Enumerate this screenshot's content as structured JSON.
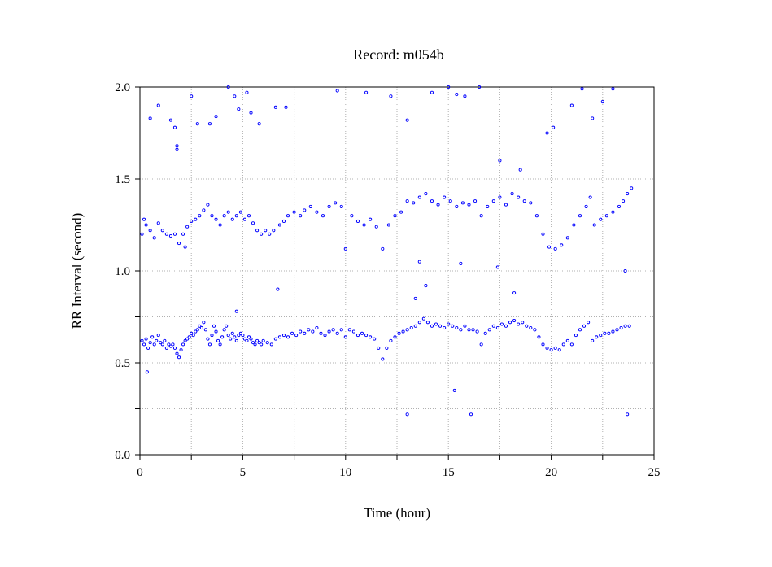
{
  "chart_data": {
    "type": "scatter",
    "title": "Record:  m054b",
    "xlabel": "Time (hour)",
    "ylabel": "RR Interval (second)",
    "xlim": [
      0,
      25
    ],
    "ylim": [
      0.0,
      2.0
    ],
    "x_ticks": [
      0,
      5,
      10,
      15,
      20,
      25
    ],
    "x_tick_labels": [
      "0",
      "5",
      "10",
      "15",
      "20",
      "25"
    ],
    "y_ticks": [
      0.0,
      0.5,
      1.0,
      1.5,
      2.0
    ],
    "y_tick_labels": [
      "0.0",
      "0.5",
      "1.0",
      "1.5",
      "2.0"
    ],
    "grid": true,
    "marker": "open-circle",
    "color": "#0000ff",
    "series": [
      {
        "values": [
          [
            0.1,
            0.62
          ],
          [
            0.2,
            0.6
          ],
          [
            0.3,
            0.63
          ],
          [
            0.4,
            0.58
          ],
          [
            0.5,
            0.61
          ],
          [
            0.6,
            0.64
          ],
          [
            0.7,
            0.6
          ],
          [
            0.8,
            0.62
          ],
          [
            0.9,
            0.65
          ],
          [
            1.0,
            0.61
          ],
          [
            1.1,
            0.6
          ],
          [
            1.2,
            0.62
          ],
          [
            1.3,
            0.58
          ],
          [
            1.4,
            0.6
          ],
          [
            1.5,
            0.59
          ],
          [
            1.6,
            0.6
          ],
          [
            1.7,
            0.58
          ],
          [
            1.8,
            0.55
          ],
          [
            1.9,
            0.53
          ],
          [
            2.0,
            0.57
          ],
          [
            2.1,
            0.6
          ],
          [
            2.2,
            0.62
          ],
          [
            2.3,
            0.63
          ],
          [
            2.4,
            0.64
          ],
          [
            2.5,
            0.66
          ],
          [
            2.6,
            0.65
          ],
          [
            2.7,
            0.67
          ],
          [
            2.8,
            0.68
          ],
          [
            2.9,
            0.7
          ],
          [
            3.0,
            0.69
          ],
          [
            3.1,
            0.72
          ],
          [
            3.2,
            0.68
          ],
          [
            3.3,
            0.63
          ],
          [
            3.4,
            0.6
          ],
          [
            3.5,
            0.65
          ],
          [
            3.6,
            0.7
          ],
          [
            3.7,
            0.67
          ],
          [
            3.8,
            0.62
          ],
          [
            3.9,
            0.6
          ],
          [
            4.0,
            0.64
          ],
          [
            4.1,
            0.68
          ],
          [
            4.2,
            0.7
          ],
          [
            4.3,
            0.65
          ],
          [
            4.4,
            0.63
          ],
          [
            4.5,
            0.66
          ],
          [
            4.6,
            0.64
          ],
          [
            4.7,
            0.62
          ],
          [
            4.8,
            0.65
          ],
          [
            4.9,
            0.66
          ],
          [
            5.0,
            0.65
          ],
          [
            5.1,
            0.63
          ],
          [
            5.2,
            0.62
          ],
          [
            5.3,
            0.64
          ],
          [
            5.4,
            0.63
          ],
          [
            5.5,
            0.61
          ],
          [
            5.6,
            0.6
          ],
          [
            5.7,
            0.62
          ],
          [
            5.8,
            0.61
          ],
          [
            5.9,
            0.6
          ],
          [
            6.0,
            0.62
          ],
          [
            6.2,
            0.61
          ],
          [
            6.4,
            0.6
          ],
          [
            6.6,
            0.63
          ],
          [
            6.8,
            0.64
          ],
          [
            7.0,
            0.65
          ],
          [
            7.2,
            0.64
          ],
          [
            7.4,
            0.66
          ],
          [
            7.6,
            0.65
          ],
          [
            7.8,
            0.67
          ],
          [
            8.0,
            0.66
          ],
          [
            8.2,
            0.68
          ],
          [
            8.4,
            0.67
          ],
          [
            8.6,
            0.69
          ],
          [
            8.8,
            0.66
          ],
          [
            9.0,
            0.65
          ],
          [
            9.2,
            0.67
          ],
          [
            9.4,
            0.68
          ],
          [
            9.6,
            0.66
          ],
          [
            9.8,
            0.68
          ],
          [
            10.0,
            0.64
          ],
          [
            10.2,
            0.68
          ],
          [
            10.4,
            0.67
          ],
          [
            10.6,
            0.65
          ],
          [
            10.8,
            0.66
          ],
          [
            11.0,
            0.65
          ],
          [
            11.2,
            0.64
          ],
          [
            11.4,
            0.63
          ],
          [
            11.6,
            0.58
          ],
          [
            11.8,
            0.52
          ],
          [
            12.0,
            0.58
          ],
          [
            12.2,
            0.62
          ],
          [
            12.4,
            0.64
          ],
          [
            12.6,
            0.66
          ],
          [
            12.8,
            0.67
          ],
          [
            13.0,
            0.68
          ],
          [
            13.2,
            0.69
          ],
          [
            13.4,
            0.7
          ],
          [
            13.6,
            0.72
          ],
          [
            13.8,
            0.74
          ],
          [
            14.0,
            0.72
          ],
          [
            14.2,
            0.7
          ],
          [
            14.4,
            0.71
          ],
          [
            14.6,
            0.7
          ],
          [
            14.8,
            0.69
          ],
          [
            15.0,
            0.71
          ],
          [
            15.2,
            0.7
          ],
          [
            15.4,
            0.69
          ],
          [
            15.6,
            0.68
          ],
          [
            15.8,
            0.7
          ],
          [
            16.0,
            0.68
          ],
          [
            16.2,
            0.68
          ],
          [
            16.4,
            0.67
          ],
          [
            16.6,
            0.6
          ],
          [
            16.8,
            0.66
          ],
          [
            17.0,
            0.68
          ],
          [
            17.2,
            0.7
          ],
          [
            17.4,
            0.69
          ],
          [
            17.6,
            0.71
          ],
          [
            17.8,
            0.7
          ],
          [
            18.0,
            0.72
          ],
          [
            18.2,
            0.73
          ],
          [
            18.4,
            0.71
          ],
          [
            18.6,
            0.72
          ],
          [
            18.8,
            0.7
          ],
          [
            19.0,
            0.69
          ],
          [
            19.2,
            0.68
          ],
          [
            19.4,
            0.64
          ],
          [
            19.6,
            0.6
          ],
          [
            19.8,
            0.58
          ],
          [
            20.0,
            0.57
          ],
          [
            20.2,
            0.58
          ],
          [
            20.4,
            0.57
          ],
          [
            20.6,
            0.6
          ],
          [
            20.8,
            0.62
          ],
          [
            21.0,
            0.6
          ],
          [
            21.2,
            0.65
          ],
          [
            21.4,
            0.68
          ],
          [
            21.6,
            0.7
          ],
          [
            21.8,
            0.72
          ],
          [
            22.0,
            0.62
          ],
          [
            22.2,
            0.64
          ],
          [
            22.4,
            0.65
          ],
          [
            22.6,
            0.66
          ],
          [
            22.8,
            0.66
          ],
          [
            23.0,
            0.67
          ],
          [
            23.2,
            0.68
          ],
          [
            23.4,
            0.69
          ],
          [
            23.6,
            0.7
          ],
          [
            23.8,
            0.7
          ],
          [
            0.1,
            1.2
          ],
          [
            0.3,
            1.25
          ],
          [
            0.5,
            1.22
          ],
          [
            0.7,
            1.18
          ],
          [
            0.9,
            1.26
          ],
          [
            1.1,
            1.22
          ],
          [
            1.3,
            1.2
          ],
          [
            1.5,
            1.19
          ],
          [
            1.7,
            1.2
          ],
          [
            1.9,
            1.15
          ],
          [
            2.1,
            1.2
          ],
          [
            2.3,
            1.24
          ],
          [
            2.5,
            1.27
          ],
          [
            2.7,
            1.28
          ],
          [
            2.9,
            1.3
          ],
          [
            3.1,
            1.33
          ],
          [
            3.3,
            1.36
          ],
          [
            3.5,
            1.3
          ],
          [
            3.7,
            1.28
          ],
          [
            3.9,
            1.25
          ],
          [
            4.1,
            1.3
          ],
          [
            4.3,
            1.32
          ],
          [
            4.5,
            1.28
          ],
          [
            4.7,
            1.3
          ],
          [
            4.9,
            1.32
          ],
          [
            5.1,
            1.28
          ],
          [
            5.3,
            1.3
          ],
          [
            5.5,
            1.26
          ],
          [
            5.7,
            1.22
          ],
          [
            5.9,
            1.2
          ],
          [
            6.1,
            1.22
          ],
          [
            6.3,
            1.2
          ],
          [
            6.5,
            1.22
          ],
          [
            6.8,
            1.25
          ],
          [
            7.0,
            1.27
          ],
          [
            7.2,
            1.3
          ],
          [
            7.5,
            1.32
          ],
          [
            7.8,
            1.3
          ],
          [
            8.0,
            1.33
          ],
          [
            8.3,
            1.35
          ],
          [
            8.6,
            1.32
          ],
          [
            8.9,
            1.3
          ],
          [
            9.2,
            1.35
          ],
          [
            9.5,
            1.37
          ],
          [
            9.8,
            1.35
          ],
          [
            10.0,
            1.12
          ],
          [
            10.3,
            1.3
          ],
          [
            10.6,
            1.27
          ],
          [
            10.9,
            1.25
          ],
          [
            11.2,
            1.28
          ],
          [
            11.5,
            1.24
          ],
          [
            11.8,
            1.12
          ],
          [
            12.1,
            1.25
          ],
          [
            12.4,
            1.3
          ],
          [
            12.7,
            1.32
          ],
          [
            13.0,
            1.38
          ],
          [
            13.3,
            1.37
          ],
          [
            13.6,
            1.4
          ],
          [
            13.9,
            1.42
          ],
          [
            14.2,
            1.38
          ],
          [
            14.5,
            1.36
          ],
          [
            14.8,
            1.4
          ],
          [
            15.1,
            1.38
          ],
          [
            15.4,
            1.35
          ],
          [
            15.7,
            1.37
          ],
          [
            16.0,
            1.36
          ],
          [
            16.3,
            1.38
          ],
          [
            16.6,
            1.3
          ],
          [
            16.9,
            1.35
          ],
          [
            17.2,
            1.38
          ],
          [
            17.5,
            1.4
          ],
          [
            17.8,
            1.36
          ],
          [
            18.1,
            1.42
          ],
          [
            18.4,
            1.4
          ],
          [
            18.7,
            1.38
          ],
          [
            19.0,
            1.37
          ],
          [
            19.3,
            1.3
          ],
          [
            19.6,
            1.2
          ],
          [
            19.9,
            1.13
          ],
          [
            20.2,
            1.12
          ],
          [
            20.5,
            1.14
          ],
          [
            20.8,
            1.18
          ],
          [
            21.1,
            1.25
          ],
          [
            21.4,
            1.3
          ],
          [
            21.7,
            1.35
          ],
          [
            21.9,
            1.4
          ],
          [
            22.1,
            1.25
          ],
          [
            22.4,
            1.28
          ],
          [
            22.7,
            1.3
          ],
          [
            23.0,
            1.32
          ],
          [
            23.3,
            1.35
          ],
          [
            23.5,
            1.38
          ],
          [
            23.7,
            1.42
          ],
          [
            23.9,
            1.45
          ],
          [
            0.5,
            1.83
          ],
          [
            0.9,
            1.9
          ],
          [
            1.5,
            1.82
          ],
          [
            1.7,
            1.78
          ],
          [
            1.8,
            1.68
          ],
          [
            1.8,
            1.66
          ],
          [
            2.5,
            1.95
          ],
          [
            2.8,
            1.8
          ],
          [
            3.4,
            1.8
          ],
          [
            3.7,
            1.84
          ],
          [
            4.3,
            2.0
          ],
          [
            4.6,
            1.95
          ],
          [
            4.8,
            1.88
          ],
          [
            5.2,
            1.97
          ],
          [
            5.4,
            1.86
          ],
          [
            5.8,
            1.8
          ],
          [
            6.6,
            1.89
          ],
          [
            7.1,
            1.89
          ],
          [
            9.6,
            1.98
          ],
          [
            11.0,
            1.97
          ],
          [
            12.2,
            1.95
          ],
          [
            13.0,
            1.82
          ],
          [
            14.2,
            1.97
          ],
          [
            15.0,
            2.0
          ],
          [
            15.4,
            1.96
          ],
          [
            15.8,
            1.95
          ],
          [
            16.5,
            2.0
          ],
          [
            17.5,
            1.6
          ],
          [
            18.5,
            1.55
          ],
          [
            19.8,
            1.75
          ],
          [
            20.1,
            1.78
          ],
          [
            21.0,
            1.9
          ],
          [
            21.5,
            1.99
          ],
          [
            22.0,
            1.83
          ],
          [
            22.5,
            1.92
          ],
          [
            23.0,
            1.99
          ],
          [
            0.35,
            0.45
          ],
          [
            13.0,
            0.22
          ],
          [
            15.3,
            0.35
          ],
          [
            16.1,
            0.22
          ],
          [
            23.7,
            0.22
          ],
          [
            13.4,
            0.85
          ],
          [
            13.9,
            0.92
          ],
          [
            18.2,
            0.88
          ],
          [
            6.7,
            0.9
          ],
          [
            4.7,
            0.78
          ],
          [
            13.6,
            1.05
          ],
          [
            15.6,
            1.04
          ],
          [
            17.4,
            1.02
          ],
          [
            23.6,
            1.0
          ],
          [
            0.2,
            1.28
          ],
          [
            2.2,
            1.13
          ]
        ]
      }
    ]
  }
}
